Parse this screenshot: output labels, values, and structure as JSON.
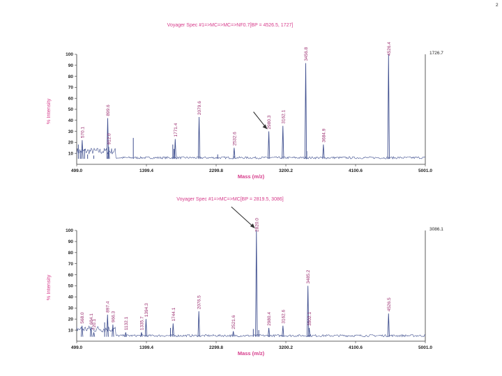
{
  "page_mark": "2",
  "chart_data": [
    {
      "type": "line",
      "title": "Voyager Spec #1=>MC=>MC=>NF0.7[BP = 4526.5, 1727]",
      "xlabel": "Mass (m/z)",
      "ylabel": "% Intensity",
      "xlim": [
        499.0,
        5001.0
      ],
      "ylim": [
        0,
        100
      ],
      "x_ticks": [
        "499.0",
        "1399.4",
        "2299.8",
        "3200.2",
        "4100.6",
        "5001.0"
      ],
      "y_ticks": [
        10,
        20,
        30,
        40,
        50,
        60,
        70,
        80,
        90,
        100
      ],
      "y_tick_labels": [
        "10",
        "20",
        "30",
        "40",
        "50",
        "60",
        "70",
        "80",
        "90",
        "100"
      ],
      "bp_value": "1726.7",
      "baseline": 5,
      "peak_labels": [
        {
          "label": "570.1",
          "x": 570.1,
          "y": 22
        },
        {
          "label": "899.6",
          "x": 899.6,
          "y": 42
        },
        {
          "label": "912.0",
          "x": 912.0,
          "y": 16
        },
        {
          "label": "1771.4",
          "x": 1771.4,
          "y": 23
        },
        {
          "label": "2079.6",
          "x": 2079.6,
          "y": 43
        },
        {
          "label": "2532.6",
          "x": 2532.6,
          "y": 15
        },
        {
          "label": "2980.3",
          "x": 2980.3,
          "y": 30
        },
        {
          "label": "3162.1",
          "x": 3162.1,
          "y": 35
        },
        {
          "label": "3456.8",
          "x": 3456.8,
          "y": 92
        },
        {
          "label": "3684.9",
          "x": 3684.9,
          "y": 18
        },
        {
          "label": "4526.4",
          "x": 4526.4,
          "y": 100
        }
      ],
      "extra_peaks": [
        {
          "x": 520,
          "y": 18
        },
        {
          "x": 545,
          "y": 12
        },
        {
          "x": 600,
          "y": 14
        },
        {
          "x": 640,
          "y": 9
        },
        {
          "x": 720,
          "y": 8
        },
        {
          "x": 1230,
          "y": 24
        },
        {
          "x": 1740,
          "y": 18
        },
        {
          "x": 1755,
          "y": 14
        },
        {
          "x": 2320,
          "y": 9
        },
        {
          "x": 3470,
          "y": 12
        }
      ],
      "arrow": {
        "x": 2980.3,
        "y": 30
      }
    },
    {
      "type": "line",
      "title": "Voyager Spec #1=>MC=>MC[BP = 2819.5, 3086]",
      "xlabel": "Mass (m/z)",
      "ylabel": "% Intensity",
      "xlim": [
        499.0,
        5001.0
      ],
      "ylim": [
        0,
        100
      ],
      "x_ticks": [
        "499.0",
        "1399.4",
        "2299.8",
        "3200.2",
        "4100.6",
        "5001.0"
      ],
      "y_ticks": [
        10,
        20,
        30,
        40,
        50,
        60,
        70,
        80,
        90,
        100
      ],
      "y_tick_labels": [
        "10",
        "20",
        "30",
        "40",
        "50",
        "60",
        "70",
        "80",
        "90",
        "100"
      ],
      "bp_value": "3086.1",
      "baseline": 4,
      "peak_labels": [
        {
          "label": "568.0",
          "x": 568.0,
          "y": 14
        },
        {
          "label": "684.1",
          "x": 684.1,
          "y": 13
        },
        {
          "label": "720.1",
          "x": 720.1,
          "y": 8
        },
        {
          "label": "897.4",
          "x": 897.4,
          "y": 24
        },
        {
          "label": "966.3",
          "x": 966.3,
          "y": 15
        },
        {
          "label": "1132.1",
          "x": 1132.1,
          "y": 8
        },
        {
          "label": "1335.7",
          "x": 1335.7,
          "y": 8
        },
        {
          "label": "1394.3",
          "x": 1394.3,
          "y": 20
        },
        {
          "label": "1744.1",
          "x": 1744.1,
          "y": 16
        },
        {
          "label": "2076.5",
          "x": 2076.5,
          "y": 27
        },
        {
          "label": "2521.6",
          "x": 2521.6,
          "y": 9
        },
        {
          "label": "2820.0",
          "x": 2820.0,
          "y": 100
        },
        {
          "label": "2980.4",
          "x": 2980.4,
          "y": 12
        },
        {
          "label": "3162.6",
          "x": 3162.6,
          "y": 14
        },
        {
          "label": "3485.2",
          "x": 3485.2,
          "y": 50
        },
        {
          "label": "3502.1",
          "x": 3502.1,
          "y": 12
        },
        {
          "label": "4526.5",
          "x": 4526.5,
          "y": 25
        }
      ],
      "extra_peaks": [
        {
          "x": 860,
          "y": 17
        },
        {
          "x": 1710,
          "y": 12
        },
        {
          "x": 2780,
          "y": 11
        },
        {
          "x": 2850,
          "y": 10
        }
      ],
      "arrow": {
        "x": 2820.0,
        "y": 100
      }
    }
  ]
}
